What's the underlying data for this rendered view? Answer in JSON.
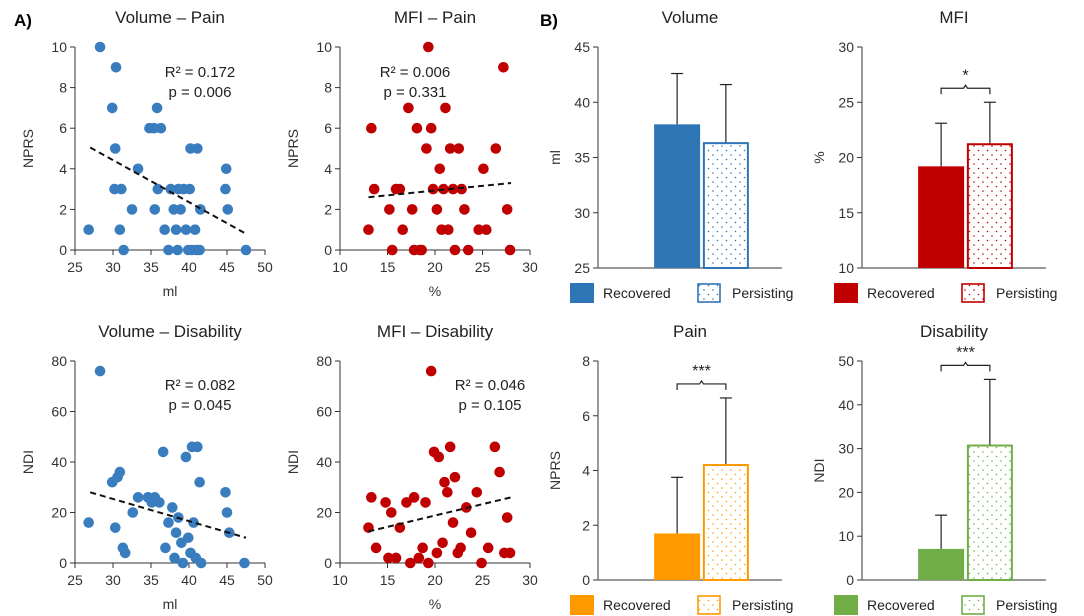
{
  "panel_labels": {
    "a": "A)",
    "b": "B)"
  },
  "scatter_colors": {
    "volume": "#3a7dbf",
    "mfi": "#c00000"
  },
  "chart_data": [
    {
      "id": "vol_pain",
      "type": "scatter",
      "title": "Volume – Pain",
      "xlabel": "ml",
      "ylabel": "NPRS",
      "xlim": [
        25,
        50
      ],
      "ylim": [
        0,
        10
      ],
      "xticks": [
        25,
        30,
        35,
        40,
        45,
        50
      ],
      "yticks": [
        0,
        2,
        4,
        6,
        8,
        10
      ],
      "color": "#3a7dbf",
      "annotation": [
        "R² = 0.172",
        "p = 0.006"
      ],
      "trendline": [
        [
          27,
          5.05
        ],
        [
          47.5,
          0.8
        ]
      ],
      "x": [
        26.8,
        28.3,
        29.9,
        30.3,
        30.2,
        30.4,
        30.9,
        31.1,
        31.4,
        32.5,
        33.3,
        34.8,
        35.4,
        35.8,
        36.3,
        35.9,
        35.5,
        36.8,
        37.3,
        37.6,
        38.0,
        38.3,
        38.5,
        38.9,
        38.6,
        39.3,
        39.6,
        39.9,
        40.2,
        40.1,
        40.4,
        40.8,
        41.0,
        41.1,
        41.5,
        41.4,
        44.9,
        44.8,
        45.1,
        47.5
      ],
      "y": [
        1,
        10,
        7,
        5,
        3,
        9,
        1,
        3,
        0,
        2,
        4,
        6,
        6,
        7,
        6,
        3,
        2,
        1,
        0,
        3,
        2,
        1,
        0,
        2,
        3,
        3,
        1,
        0,
        5,
        3,
        0,
        1,
        0,
        5,
        2,
        0,
        4,
        3,
        2,
        0
      ]
    },
    {
      "id": "mfi_pain",
      "type": "scatter",
      "title": "MFI – Pain",
      "xlabel": "%",
      "ylabel": "NPRS",
      "xlim": [
        10,
        30
      ],
      "ylim": [
        0,
        10
      ],
      "xticks": [
        10,
        15,
        20,
        25,
        30
      ],
      "yticks": [
        0,
        2,
        4,
        6,
        8,
        10
      ],
      "color": "#c00000",
      "annotation": [
        "R² = 0.006",
        "p = 0.331"
      ],
      "trendline": [
        [
          13,
          2.6
        ],
        [
          28,
          3.3
        ]
      ],
      "x": [
        13.0,
        13.3,
        13.6,
        15.2,
        15.5,
        15.9,
        16.3,
        16.6,
        17.2,
        17.6,
        17.8,
        18.1,
        18.4,
        18.6,
        19.1,
        19.3,
        19.6,
        19.8,
        20.2,
        20.5,
        20.7,
        20.9,
        21.1,
        21.4,
        21.6,
        21.9,
        22.1,
        22.5,
        22.8,
        23.1,
        23.5,
        24.6,
        25.1,
        25.4,
        26.4,
        27.2,
        27.6,
        27.9
      ],
      "y": [
        1,
        6,
        3,
        2,
        0,
        3,
        3,
        1,
        7,
        2,
        0,
        6,
        0,
        0,
        5,
        10,
        6,
        3,
        2,
        4,
        1,
        3,
        7,
        1,
        5,
        3,
        0,
        5,
        3,
        2,
        0,
        1,
        4,
        1,
        5,
        9,
        2,
        0
      ]
    },
    {
      "id": "vol_dis",
      "type": "scatter",
      "title": "Volume – Disability",
      "xlabel": "ml",
      "ylabel": "NDI",
      "xlim": [
        25,
        50
      ],
      "ylim": [
        0,
        80
      ],
      "xticks": [
        25,
        30,
        35,
        40,
        45,
        50
      ],
      "yticks": [
        0,
        20,
        40,
        60,
        80
      ],
      "color": "#3a7dbf",
      "annotation": [
        "R² = 0.082",
        "p = 0.045"
      ],
      "trendline": [
        [
          27,
          28
        ],
        [
          47.5,
          10
        ]
      ],
      "x": [
        26.8,
        28.3,
        29.9,
        30.3,
        30.6,
        30.9,
        31.3,
        31.6,
        32.6,
        33.3,
        34.6,
        35.1,
        35.5,
        36.1,
        36.6,
        36.9,
        37.3,
        37.8,
        38.1,
        38.3,
        38.6,
        39.0,
        39.2,
        39.6,
        39.9,
        40.2,
        40.4,
        40.6,
        40.9,
        41.1,
        41.4,
        41.6,
        44.8,
        45.0,
        45.3,
        47.3
      ],
      "y": [
        16,
        76,
        32,
        14,
        34,
        36,
        6,
        4,
        20,
        26,
        26,
        24,
        26,
        24,
        44,
        6,
        16,
        22,
        2,
        12,
        18,
        8,
        0,
        42,
        10,
        4,
        46,
        16,
        2,
        46,
        32,
        0,
        28,
        20,
        12,
        0
      ]
    },
    {
      "id": "mfi_dis",
      "type": "scatter",
      "title": "MFI – Disability",
      "xlabel": "%",
      "ylabel": "NDI",
      "xlim": [
        10,
        30
      ],
      "ylim": [
        0,
        80
      ],
      "xticks": [
        10,
        15,
        20,
        25,
        30
      ],
      "yticks": [
        0,
        20,
        40,
        60,
        80
      ],
      "color": "#c00000",
      "annotation": [
        "R² = 0.046",
        "p = 0.105"
      ],
      "trendline": [
        [
          13,
          12.5
        ],
        [
          28,
          26
        ]
      ],
      "x": [
        13.0,
        13.3,
        13.8,
        14.8,
        15.1,
        15.4,
        15.9,
        16.3,
        17.0,
        17.4,
        17.8,
        18.3,
        18.7,
        19.0,
        19.3,
        19.6,
        19.9,
        20.2,
        20.4,
        20.8,
        21.0,
        21.3,
        21.6,
        21.9,
        22.1,
        22.4,
        22.7,
        23.3,
        23.8,
        24.4,
        24.9,
        25.6,
        26.3,
        26.8,
        27.3,
        27.6,
        27.9
      ],
      "y": [
        14,
        26,
        6,
        24,
        2,
        20,
        2,
        14,
        24,
        0,
        26,
        2,
        6,
        24,
        0,
        76,
        44,
        4,
        42,
        8,
        32,
        28,
        46,
        16,
        34,
        4,
        6,
        22,
        12,
        28,
        0,
        6,
        46,
        36,
        4,
        18,
        4
      ]
    },
    {
      "id": "bar_volume",
      "type": "bar",
      "title": "Volume",
      "ylabel": "ml",
      "ylim": [
        25,
        45
      ],
      "yticks": [
        25,
        30,
        35,
        40,
        45
      ],
      "categories": [
        "Recovered",
        "Persisting"
      ],
      "values": [
        38.0,
        36.3
      ],
      "errors": [
        4.6,
        5.3
      ],
      "color": "#2e75b6",
      "significance": ""
    },
    {
      "id": "bar_mfi",
      "type": "bar",
      "title": "MFI",
      "ylabel": "%",
      "ylim": [
        10,
        30
      ],
      "yticks": [
        10,
        15,
        20,
        25,
        30
      ],
      "categories": [
        "Recovered",
        "Persisting"
      ],
      "values": [
        19.2,
        21.2
      ],
      "errors": [
        3.9,
        3.8
      ],
      "color": "#c00000",
      "significance": "*"
    },
    {
      "id": "bar_pain",
      "type": "bar",
      "title": "Pain",
      "ylabel": "NPRS",
      "ylim": [
        0,
        8
      ],
      "yticks": [
        0,
        2,
        4,
        6,
        8
      ],
      "categories": [
        "Recovered",
        "Persisting"
      ],
      "values": [
        1.7,
        4.2
      ],
      "errors": [
        2.05,
        2.45
      ],
      "color": "#ff9900",
      "significance": "***"
    },
    {
      "id": "bar_disability",
      "type": "bar",
      "title": "Disability",
      "ylabel": "NDI",
      "ylim": [
        0,
        50
      ],
      "yticks": [
        0,
        10,
        20,
        30,
        40,
        50
      ],
      "categories": [
        "Recovered",
        "Persisting"
      ],
      "values": [
        7.1,
        30.7
      ],
      "errors": [
        7.7,
        15.1
      ],
      "color": "#70ad47",
      "significance": "***"
    }
  ]
}
